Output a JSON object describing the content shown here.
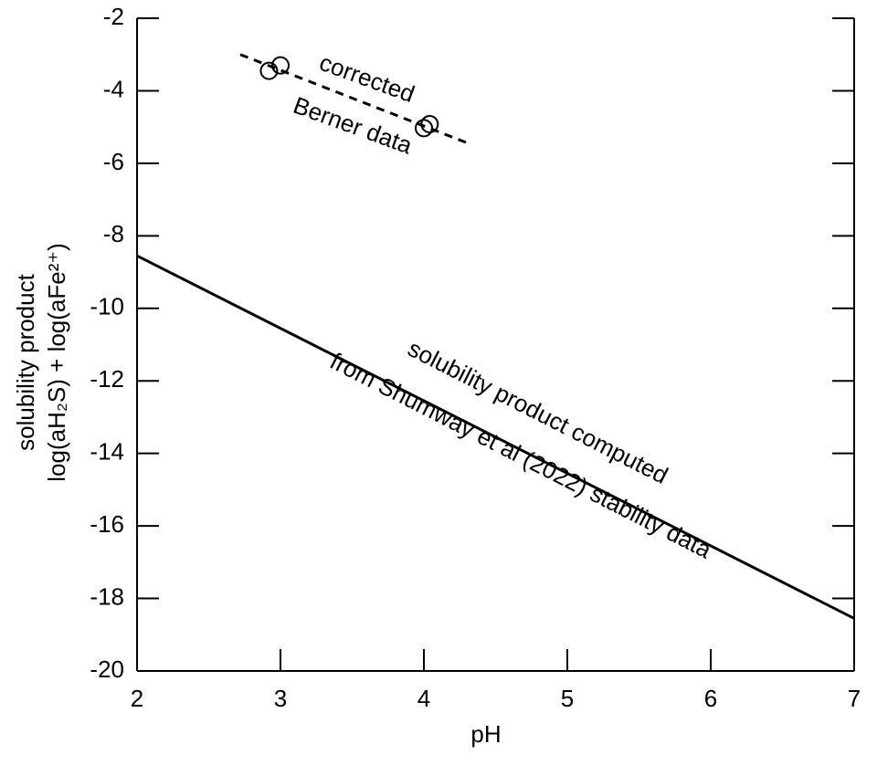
{
  "chart_data": {
    "type": "line",
    "xlabel": "pH",
    "ylabel": [
      "solubility product",
      "log(aH₂S) + log(aFe²⁺)"
    ],
    "xlim": [
      2,
      7
    ],
    "xticks": [
      2,
      3,
      4,
      5,
      6,
      7
    ],
    "ylim": [
      -20,
      -2
    ],
    "yticks": [
      -20,
      -18,
      -16,
      -14,
      -12,
      -10,
      -8,
      -6,
      -4,
      -2
    ],
    "series": [
      {
        "color": "#000000",
        "dash": false,
        "marker": "none",
        "x": [
          2,
          7
        ],
        "values": [
          -8.55,
          -18.55
        ]
      },
      {
        "color": "#000000",
        "dash": true,
        "marker": "none",
        "x": [
          2.72,
          4.31
        ],
        "values": [
          -3.0,
          -5.45
        ]
      },
      {
        "color": "#000000",
        "dash": false,
        "marker": "circle",
        "x": [
          2.92,
          3.0,
          4.04,
          4.0
        ],
        "values": [
          -3.45,
          -3.3,
          -4.92,
          -5.03
        ]
      }
    ],
    "annotations": [
      {
        "text": "corrected",
        "x": 3.6,
        "y": -3.7,
        "angle": 20
      },
      {
        "text": "Berner data",
        "x": 3.5,
        "y": -5.0,
        "angle": 20
      },
      {
        "text": "solubility product computed",
        "x": 4.79,
        "y": -12.9,
        "angle": 27
      },
      {
        "text": "from Shumway et al (2022) stability data",
        "x": 4.67,
        "y": -14.1,
        "angle": 27
      }
    ]
  }
}
